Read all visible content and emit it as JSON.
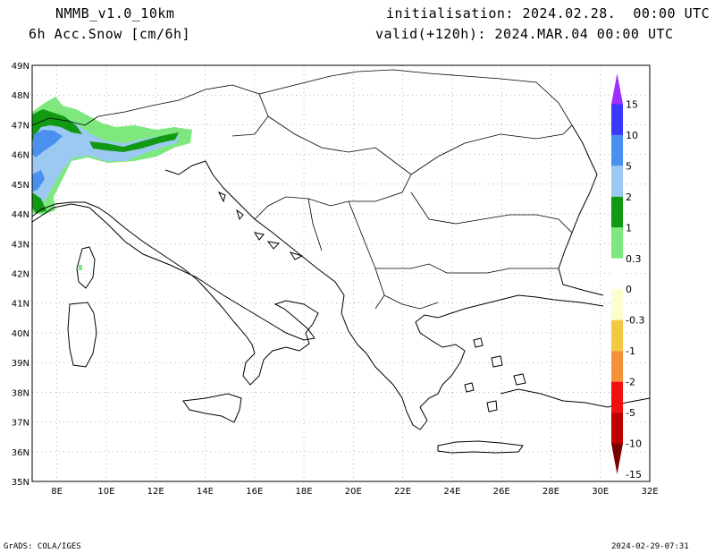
{
  "header": {
    "model": "NMMB_v1.0_10km",
    "variable": "6h Acc.Snow [cm/6h]",
    "init": "initialisation: 2024.02.28.  00:00 UTC",
    "valid": "valid(+120h): 2024.MAR.04 00:00 UTC"
  },
  "map": {
    "lon_range": [
      7,
      32
    ],
    "lat_range": [
      35,
      49
    ],
    "lon_ticks": [
      "8E",
      "10E",
      "12E",
      "14E",
      "16E",
      "18E",
      "20E",
      "22E",
      "24E",
      "26E",
      "28E",
      "30E",
      "32E"
    ],
    "lat_ticks": [
      "35N",
      "36N",
      "37N",
      "38N",
      "39N",
      "40N",
      "41N",
      "42N",
      "43N",
      "44N",
      "45N",
      "46N",
      "47N",
      "48N",
      "49N"
    ],
    "grid": "dotted"
  },
  "colorbar": {
    "labels": [
      "15",
      "10",
      "5",
      "2",
      "1",
      "0.3",
      "0",
      "-0.3",
      "-1",
      "-2",
      "-5",
      "-10",
      "-15"
    ],
    "colors": [
      "#9b30ff",
      "#3a3aff",
      "#4a90ee",
      "#9cc9f2",
      "#119a11",
      "#7ee87e",
      "#ffffff",
      "#fdfdd0",
      "#f5c842",
      "#f39238",
      "#f01010",
      "#c00000",
      "#7a0000"
    ]
  },
  "footer": {
    "left": "GrADS: COLA/IGES",
    "right": "2024-02-29-07:31"
  }
}
